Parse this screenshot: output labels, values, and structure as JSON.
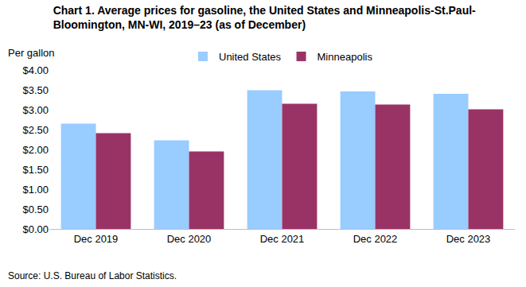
{
  "chart_data": {
    "type": "bar",
    "title": [
      "Chart 1. Average prices for gasoline, the United States and Minneapolis-St.Paul-",
      "Bloomington, MN-WI, 2019–23 (as of December)"
    ],
    "y_label": "Per gallon",
    "source": "Source: U.S. Bureau of Labor Statistics.",
    "categories": [
      "Dec 2019",
      "Dec 2020",
      "Dec 2021",
      "Dec 2022",
      "Dec 2023"
    ],
    "series": [
      {
        "name": "United States",
        "color": "#99ccff",
        "values": [
          2.65,
          2.23,
          3.49,
          3.46,
          3.4
        ]
      },
      {
        "name": "Minneapolis",
        "color": "#993366",
        "values": [
          2.41,
          1.95,
          3.15,
          3.13,
          3.01
        ]
      }
    ],
    "ylim": [
      0,
      4
    ],
    "yticks": [
      {
        "value": 0,
        "label": "$0.00"
      },
      {
        "value": 0.5,
        "label": "$0.50"
      },
      {
        "value": 1,
        "label": "$1.00"
      },
      {
        "value": 1.5,
        "label": "$1.50"
      },
      {
        "value": 2,
        "label": "$2.00"
      },
      {
        "value": 2.5,
        "label": "$2.50"
      },
      {
        "value": 3,
        "label": "$3.00"
      },
      {
        "value": 3.5,
        "label": "$3.50"
      },
      {
        "value": 4,
        "label": "$4.00"
      }
    ],
    "grid": false,
    "legend": "top"
  }
}
